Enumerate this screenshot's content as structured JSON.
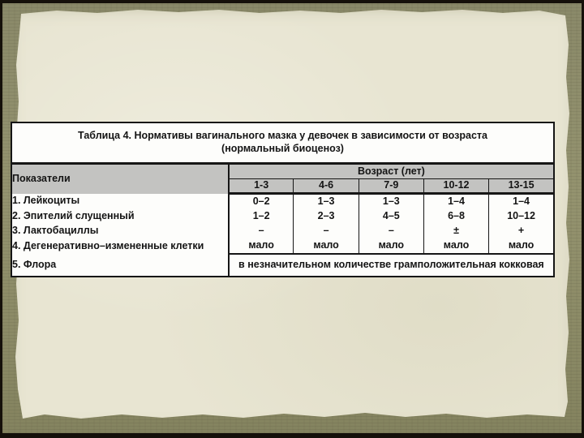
{
  "slide": {
    "title_line1": "Таблица 4. Нормативы вагинального мазка у девочек в зависимости от возраста",
    "title_line2": "(нормальный биоценоз)"
  },
  "table": {
    "header": {
      "indicators": "Показатели",
      "age_group": "Возраст (лет)",
      "age_columns": [
        "1-3",
        "4-6",
        "7-9",
        "10-12",
        "13-15"
      ]
    },
    "rows": [
      {
        "label": "1. Лейкоциты",
        "values": [
          "0–2",
          "1–3",
          "1–3",
          "1–4",
          "1–4"
        ]
      },
      {
        "label": "2. Эпителий слущенный",
        "values": [
          "1–2",
          "2–3",
          "4–5",
          "6–8",
          "10–12"
        ]
      },
      {
        "label": "3. Лактобациллы",
        "values": [
          "–",
          "–",
          "–",
          "±",
          "+"
        ]
      },
      {
        "label": "4. Дегенеративно–измененные клетки",
        "values": [
          "мало",
          "мало",
          "мало",
          "мало",
          "мало"
        ]
      }
    ],
    "flora_row": {
      "label": "5. Флора",
      "merged_value": "в незначительном количестве грамположительная кокковая"
    },
    "colors": {
      "header_bg": "#c3c3c1",
      "cell_bg": "#fdfdfb",
      "border": "#161616",
      "paper": "#e8e5d2",
      "band": "#8f8e6e",
      "frame": "#15100a"
    }
  }
}
